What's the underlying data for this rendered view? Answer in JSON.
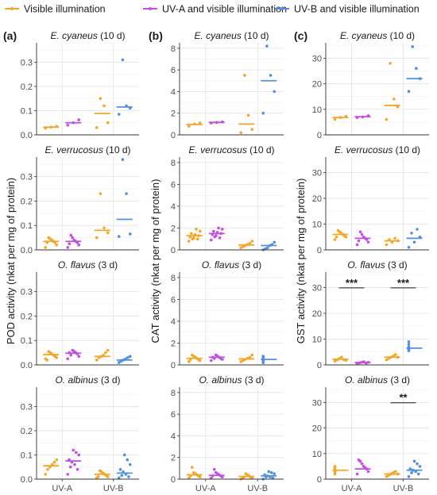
{
  "legend": {
    "items": [
      {
        "label": "Visible illumination",
        "color": "#F5A623"
      },
      {
        "label": "UV-A and visible illumination",
        "color": "#C44DE8"
      },
      {
        "label": "UV-B and visible illumination",
        "color": "#4D90E8"
      }
    ]
  },
  "chart_data": [
    {
      "type": "scatter",
      "panel_label": "(a)",
      "ylabel": "POD activity (nkat per mg of protein)",
      "ylim": [
        0,
        0.38
      ],
      "yticks": [
        0.0,
        0.1,
        0.2,
        0.3
      ],
      "ytick_labels": [
        "0.0",
        "0.1",
        "0.2",
        "0.3"
      ],
      "categories": [
        "UV-A",
        "UV-B"
      ],
      "rows": [
        {
          "species": "E. cyaneus",
          "duration": "(10 d)",
          "groups": [
            {
              "cat": "UV-A",
              "series": "Visible illumination",
              "points": [
                0.028,
                0.032,
                0.035
              ],
              "median": 0.032,
              "sig": ""
            },
            {
              "cat": "UV-A",
              "series": "UV-A and visible illumination",
              "points": [
                0.04,
                0.05,
                0.062
              ],
              "median": 0.05,
              "sig": ""
            },
            {
              "cat": "UV-B",
              "series": "Visible illumination",
              "points": [
                0.03,
                0.05,
                0.12,
                0.15
              ],
              "median": 0.088,
              "sig": ""
            },
            {
              "cat": "UV-B",
              "series": "UV-B and visible illumination",
              "points": [
                0.085,
                0.11,
                0.12,
                0.31
              ],
              "median": 0.115,
              "sig": ""
            }
          ]
        },
        {
          "species": "E. verrucosus",
          "duration": "(10 d)",
          "groups": [
            {
              "cat": "UV-A",
              "series": "Visible illumination",
              "points": [
                0.01,
                0.02,
                0.03,
                0.035,
                0.04,
                0.045,
                0.05,
                0.03
              ],
              "median": 0.035,
              "sig": ""
            },
            {
              "cat": "UV-A",
              "series": "UV-A and visible illumination",
              "points": [
                0.01,
                0.02,
                0.03,
                0.035,
                0.04,
                0.05,
                0.06,
                0.025
              ],
              "median": 0.035,
              "sig": ""
            },
            {
              "cat": "UV-B",
              "series": "Visible illumination",
              "points": [
                0.05,
                0.07,
                0.09,
                0.23
              ],
              "median": 0.08,
              "sig": ""
            },
            {
              "cat": "UV-B",
              "series": "UV-B and visible illumination",
              "points": [
                0.055,
                0.065,
                0.23,
                0.37
              ],
              "median": 0.125,
              "sig": ""
            }
          ]
        },
        {
          "species": "O. flavus",
          "duration": "(3 d)",
          "groups": [
            {
              "cat": "UV-A",
              "series": "Visible illumination",
              "points": [
                0.025,
                0.03,
                0.035,
                0.04,
                0.045,
                0.05,
                0.055,
                0.02
              ],
              "median": 0.042,
              "sig": ""
            },
            {
              "cat": "UV-A",
              "series": "UV-A and visible illumination",
              "points": [
                0.025,
                0.035,
                0.045,
                0.05,
                0.055,
                0.06,
                0.04,
                0.05
              ],
              "median": 0.048,
              "sig": ""
            },
            {
              "cat": "UV-B",
              "series": "Visible illumination",
              "points": [
                0.02,
                0.03,
                0.035,
                0.04,
                0.05,
                0.06
              ],
              "median": 0.035,
              "sig": ""
            },
            {
              "cat": "UV-B",
              "series": "UV-B and visible illumination",
              "points": [
                0.01,
                0.015,
                0.02,
                0.025,
                0.03,
                0.035
              ],
              "median": 0.02,
              "sig": ""
            }
          ]
        },
        {
          "species": "O. albinus",
          "duration": "(3 d)",
          "groups": [
            {
              "cat": "UV-A",
              "series": "Visible illumination",
              "points": [
                0.02,
                0.04,
                0.05,
                0.06,
                0.07,
                0.08
              ],
              "median": 0.055,
              "sig": ""
            },
            {
              "cat": "UV-A",
              "series": "UV-A and visible illumination",
              "points": [
                0.02,
                0.04,
                0.06,
                0.07,
                0.08,
                0.1,
                0.11,
                0.12,
                0.05
              ],
              "median": 0.075,
              "sig": ""
            },
            {
              "cat": "UV-B",
              "series": "Visible illumination",
              "points": [
                0.005,
                0.01,
                0.015,
                0.02,
                0.025,
                0.03,
                0.035,
                0.01
              ],
              "median": 0.02,
              "sig": ""
            },
            {
              "cat": "UV-B",
              "series": "UV-B and visible illumination",
              "points": [
                0.005,
                0.01,
                0.02,
                0.03,
                0.04,
                0.06,
                0.08,
                0.1,
                0.015
              ],
              "median": 0.025,
              "sig": ""
            }
          ]
        }
      ]
    },
    {
      "type": "scatter",
      "panel_label": "(b)",
      "ylabel": "CAT activity (nkat per mg of protein)",
      "ylim": [
        0,
        8.5
      ],
      "yticks": [
        0,
        2,
        4,
        6,
        8
      ],
      "ytick_labels": [
        "0",
        "2",
        "4",
        "6",
        "8"
      ],
      "categories": [
        "UV-A",
        "UV-B"
      ],
      "rows": [
        {
          "species": "E. cyaneus",
          "duration": "(10 d)",
          "groups": [
            {
              "cat": "UV-A",
              "series": "Visible illumination",
              "points": [
                0.8,
                1.0,
                1.1
              ],
              "median": 0.95,
              "sig": ""
            },
            {
              "cat": "UV-A",
              "series": "UV-A and visible illumination",
              "points": [
                1.1,
                1.15,
                1.2
              ],
              "median": 1.15,
              "sig": ""
            },
            {
              "cat": "UV-B",
              "series": "Visible illumination",
              "points": [
                0.2,
                0.5,
                1.8,
                5.5
              ],
              "median": 1.0,
              "sig": ""
            },
            {
              "cat": "UV-B",
              "series": "UV-B and visible illumination",
              "points": [
                2.0,
                4.0,
                5.5,
                8.2
              ],
              "median": 5.0,
              "sig": ""
            }
          ]
        },
        {
          "species": "E. verrucosus",
          "duration": "(10 d)",
          "groups": [
            {
              "cat": "UV-A",
              "series": "Visible illumination",
              "points": [
                0.8,
                1.0,
                1.1,
                1.2,
                1.3,
                1.4,
                1.5,
                1.7,
                1.9,
                1.0
              ],
              "median": 1.3,
              "sig": ""
            },
            {
              "cat": "UV-A",
              "series": "UV-A and visible illumination",
              "points": [
                0.9,
                1.1,
                1.3,
                1.4,
                1.5,
                1.6,
                1.7,
                1.9,
                2.0,
                1.2
              ],
              "median": 1.5,
              "sig": ""
            },
            {
              "cat": "UV-B",
              "series": "Visible illumination",
              "points": [
                0.2,
                0.3,
                0.4,
                0.5,
                0.6,
                0.8
              ],
              "median": 0.45,
              "sig": ""
            },
            {
              "cat": "UV-B",
              "series": "UV-B and visible illumination",
              "points": [
                0.0,
                0.1,
                0.2,
                0.4,
                0.5,
                0.7
              ],
              "median": 0.4,
              "sig": ""
            }
          ]
        },
        {
          "species": "O. flavus",
          "duration": "(3 d)",
          "groups": [
            {
              "cat": "UV-A",
              "series": "Visible illumination",
              "points": [
                0.3,
                0.4,
                0.5,
                0.6,
                0.7,
                0.8,
                0.9,
                0.5
              ],
              "median": 0.6,
              "sig": ""
            },
            {
              "cat": "UV-A",
              "series": "UV-A and visible illumination",
              "points": [
                0.4,
                0.5,
                0.6,
                0.7,
                0.8,
                0.9,
                0.6,
                0.7
              ],
              "median": 0.7,
              "sig": ""
            },
            {
              "cat": "UV-B",
              "series": "Visible illumination",
              "points": [
                0.3,
                0.4,
                0.5,
                0.6,
                0.7,
                0.9
              ],
              "median": 0.55,
              "sig": ""
            },
            {
              "cat": "UV-B",
              "series": "UV-B and visible illumination",
              "points": [
                0.2,
                0.3,
                0.4,
                0.5,
                0.6,
                0.7,
                0.8
              ],
              "median": 0.5,
              "sig": ""
            }
          ]
        },
        {
          "species": "O. albinus",
          "duration": "(3 d)",
          "groups": [
            {
              "cat": "UV-A",
              "series": "Visible illumination",
              "points": [
                0.1,
                0.2,
                0.3,
                0.4,
                0.5,
                0.6,
                1.1,
                0.3
              ],
              "median": 0.4,
              "sig": ""
            },
            {
              "cat": "UV-A",
              "series": "UV-A and visible illumination",
              "points": [
                0.1,
                0.2,
                0.3,
                0.4,
                0.5,
                0.6,
                0.9,
                0.3
              ],
              "median": 0.35,
              "sig": ""
            },
            {
              "cat": "UV-B",
              "series": "Visible illumination",
              "points": [
                0.0,
                0.1,
                0.2,
                0.3,
                0.4,
                0.5,
                0.2,
                0.1
              ],
              "median": 0.25,
              "sig": ""
            },
            {
              "cat": "UV-B",
              "series": "UV-B and visible illumination",
              "points": [
                0.0,
                0.1,
                0.2,
                0.3,
                0.4,
                0.5,
                0.6,
                0.7,
                0.2
              ],
              "median": 0.3,
              "sig": ""
            }
          ]
        }
      ]
    },
    {
      "type": "scatter",
      "panel_label": "(c)",
      "ylabel": "GST activity (nkat per mg of protein)",
      "ylim": [
        0,
        36
      ],
      "yticks": [
        0,
        10,
        20,
        30
      ],
      "ytick_labels": [
        "0",
        "10",
        "20",
        "30"
      ],
      "categories": [
        "UV-A",
        "UV-B"
      ],
      "rows": [
        {
          "species": "E. cyaneus",
          "duration": "(10 d)",
          "groups": [
            {
              "cat": "UV-A",
              "series": "Visible illumination",
              "points": [
                6.0,
                6.8,
                7.2
              ],
              "median": 6.8,
              "sig": ""
            },
            {
              "cat": "UV-A",
              "series": "UV-A and visible illumination",
              "points": [
                6.8,
                7.0,
                7.5
              ],
              "median": 7.1,
              "sig": ""
            },
            {
              "cat": "UV-B",
              "series": "Visible illumination",
              "points": [
                6.0,
                11.0,
                14.0,
                28.0
              ],
              "median": 11.5,
              "sig": ""
            },
            {
              "cat": "UV-B",
              "series": "UV-B and visible illumination",
              "points": [
                17.0,
                22.0,
                26.0,
                34.5
              ],
              "median": 22.0,
              "sig": ""
            }
          ]
        },
        {
          "species": "E. verrucosus",
          "duration": "(10 d)",
          "groups": [
            {
              "cat": "UV-A",
              "series": "Visible illumination",
              "points": [
                4.0,
                5.0,
                5.5,
                6.0,
                6.5,
                7.0,
                7.5,
                5.0
              ],
              "median": 6.0,
              "sig": ""
            },
            {
              "cat": "UV-A",
              "series": "UV-A and visible illumination",
              "points": [
                2.0,
                3.0,
                4.0,
                4.5,
                5.0,
                6.0,
                7.0,
                3.5
              ],
              "median": 4.5,
              "sig": ""
            },
            {
              "cat": "UV-B",
              "series": "Visible illumination",
              "points": [
                2.0,
                3.0,
                3.5,
                4.0,
                4.5
              ],
              "median": 3.5,
              "sig": ""
            },
            {
              "cat": "UV-B",
              "series": "UV-B and visible illumination",
              "points": [
                1.0,
                3.0,
                5.0,
                6.5,
                8.0
              ],
              "median": 4.5,
              "sig": ""
            }
          ]
        },
        {
          "species": "O. flavus",
          "duration": "(3 d)",
          "groups": [
            {
              "cat": "UV-A",
              "series": "Visible illumination",
              "points": [
                1.5,
                2.0,
                2.5,
                3.0,
                2.0,
                1.8
              ],
              "median": 2.2,
              "sig": "***"
            },
            {
              "cat": "UV-A",
              "series": "UV-A and visible illumination",
              "points": [
                0.5,
                0.8,
                1.0,
                1.2,
                0.7,
                1.0
              ],
              "median": 0.9,
              "sig": ""
            },
            {
              "cat": "UV-B",
              "series": "Visible illumination",
              "points": [
                2.0,
                2.5,
                3.0,
                3.5,
                4.0,
                3.0
              ],
              "median": 3.0,
              "sig": "***"
            },
            {
              "cat": "UV-B",
              "series": "UV-B and visible illumination",
              "points": [
                5.5,
                6.0,
                6.5,
                7.0,
                8.0,
                9.0,
                6.5
              ],
              "median": 6.5,
              "sig": ""
            }
          ]
        },
        {
          "species": "O. albinus",
          "duration": "(3 d)",
          "groups": [
            {
              "cat": "UV-A",
              "series": "Visible illumination",
              "points": [
                2.0,
                3.0,
                3.5,
                4.0,
                4.5,
                5.0,
                3.0
              ],
              "median": 3.5,
              "sig": ""
            },
            {
              "cat": "UV-A",
              "series": "UV-A and visible illumination",
              "points": [
                2.0,
                3.0,
                4.0,
                4.5,
                5.0,
                6.0,
                7.0,
                7.5
              ],
              "median": 4.0,
              "sig": ""
            },
            {
              "cat": "UV-B",
              "series": "Visible illumination",
              "points": [
                1.0,
                1.5,
                2.0,
                2.5,
                3.0,
                2.0
              ],
              "median": 2.0,
              "sig": "**"
            },
            {
              "cat": "UV-B",
              "series": "UV-B and visible illumination",
              "points": [
                1.0,
                2.0,
                3.0,
                3.5,
                4.0,
                5.0,
                6.0,
                7.0,
                2.5
              ],
              "median": 3.5,
              "sig": ""
            }
          ]
        }
      ]
    }
  ]
}
